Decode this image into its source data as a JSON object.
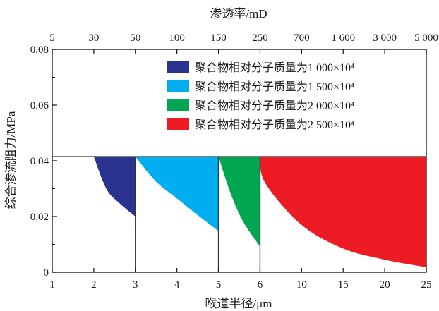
{
  "chart_data": {
    "type": "area",
    "title": "",
    "xlabel": "喉道半径/μm",
    "ylabel": "综合渗流阻力/MPa",
    "x2label": "渗透率/mD",
    "ylim": [
      0,
      0.08
    ],
    "y_ticks": [
      "0",
      "0.02",
      "0.04",
      "0.06",
      "0.08"
    ],
    "x_ticks": [
      "1",
      "2",
      "3",
      "4",
      "5",
      "6",
      "10",
      "15",
      "20",
      "25"
    ],
    "x2_ticks": [
      "5",
      "30",
      "50",
      "100",
      "150",
      "250",
      "700",
      "1 600",
      "3 000",
      "5 000"
    ],
    "x_scale": "piecewise (ticks evenly spaced)",
    "grid": false,
    "legend_position": "top-right",
    "top_line_y": 0.0415,
    "series": [
      {
        "name": "聚合物相对分子质量为1 000×10⁴",
        "color": "#2b3391",
        "x": [
          2,
          2.3,
          2.6,
          3
        ],
        "y": [
          0.0415,
          0.03,
          0.025,
          0.02
        ]
      },
      {
        "name": "聚合物相对分子质量为1 500×10⁴",
        "color": "#00aeef",
        "x": [
          3,
          3.5,
          4,
          4.5,
          5
        ],
        "y": [
          0.0415,
          0.0325,
          0.0265,
          0.0205,
          0.0148
        ]
      },
      {
        "name": "聚合物相对分子质量为2 000×10⁴",
        "color": "#00a651",
        "x": [
          5,
          5.3,
          5.6,
          6
        ],
        "y": [
          0.0415,
          0.028,
          0.018,
          0.0092
        ]
      },
      {
        "name": "聚合物相对分子质量为2 500×10⁴",
        "color": "#ed1c24",
        "x": [
          6,
          6.5,
          10,
          15,
          20,
          25
        ],
        "y": [
          0.0415,
          0.032,
          0.017,
          0.0085,
          0.0045,
          0.0018
        ]
      }
    ]
  }
}
